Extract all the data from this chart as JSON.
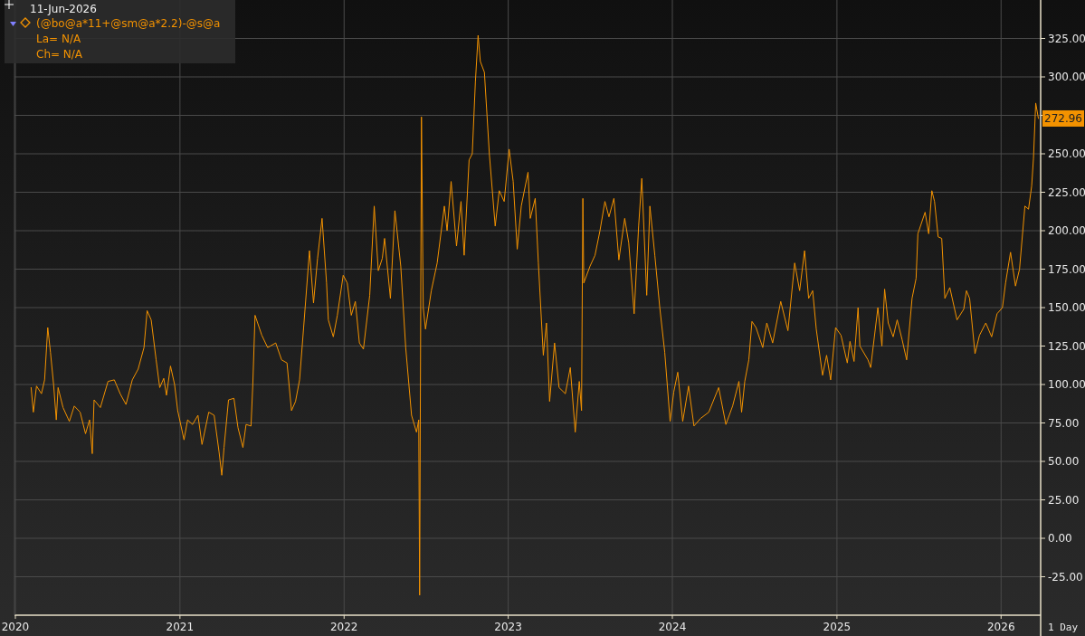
{
  "chart_data": {
    "type": "line",
    "x": [
      "2020-02-05",
      "2020-02-10",
      "2020-02-17",
      "2020-02-28",
      "2020-03-06",
      "2020-03-13",
      "2020-03-19",
      "2020-03-26",
      "2020-04-01",
      "2020-04-05",
      "2020-04-16",
      "2020-04-30",
      "2020-05-11",
      "2020-05-24",
      "2020-06-05",
      "2020-06-14",
      "2020-06-20",
      "2020-06-24",
      "2020-07-08",
      "2020-07-25",
      "2020-08-08",
      "2020-08-21",
      "2020-09-03",
      "2020-09-17",
      "2020-09-30",
      "2020-10-13",
      "2020-10-20",
      "2020-10-29",
      "2020-11-09",
      "2020-11-17",
      "2020-11-26",
      "2020-12-02",
      "2020-12-11",
      "2020-12-20",
      "2020-12-27",
      "2021-01-10",
      "2021-01-18",
      "2021-01-29",
      "2021-02-10",
      "2021-02-19",
      "2021-03-06",
      "2021-03-18",
      "2021-03-29",
      "2021-04-04",
      "2021-04-09",
      "2021-04-19",
      "2021-05-01",
      "2021-05-10",
      "2021-05-21",
      "2021-05-28",
      "2021-06-08",
      "2021-06-12",
      "2021-06-17",
      "2021-07-02",
      "2021-07-15",
      "2021-08-02",
      "2021-08-15",
      "2021-08-27",
      "2021-09-06",
      "2021-09-15",
      "2021-09-24",
      "2021-10-03",
      "2021-10-16",
      "2021-10-25",
      "2021-11-03",
      "2021-11-13",
      "2021-11-23",
      "2021-11-27",
      "2021-12-08",
      "2021-12-17",
      "2021-12-30",
      "2022-01-08",
      "2022-01-17",
      "2022-01-26",
      "2022-02-04",
      "2022-02-13",
      "2022-02-27",
      "2022-03-09",
      "2022-03-18",
      "2022-03-27",
      "2022-04-01",
      "2022-04-14",
      "2022-04-24",
      "2022-05-07",
      "2022-05-18",
      "2022-05-31",
      "2022-06-11",
      "2022-06-16",
      "2022-06-18",
      "2022-06-22",
      "2022-06-26",
      "2022-07-01",
      "2022-07-14",
      "2022-07-27",
      "2022-08-12",
      "2022-08-18",
      "2022-08-27",
      "2022-09-08",
      "2022-09-18",
      "2022-09-25",
      "2022-10-06",
      "2022-10-13",
      "2022-10-20",
      "2022-10-26",
      "2022-10-31",
      "2022-11-09",
      "2022-11-20",
      "2022-12-03",
      "2022-12-12",
      "2022-12-23",
      "2023-01-03",
      "2023-01-12",
      "2023-01-21",
      "2023-01-30",
      "2023-02-14",
      "2023-02-19",
      "2023-03-02",
      "2023-03-09",
      "2023-03-20",
      "2023-03-27",
      "2023-04-03",
      "2023-04-14",
      "2023-04-24",
      "2023-05-08",
      "2023-05-19",
      "2023-05-30",
      "2023-06-08",
      "2023-06-13",
      "2023-06-16",
      "2023-06-18",
      "2023-07-02",
      "2023-07-13",
      "2023-07-24",
      "2023-08-04",
      "2023-08-13",
      "2023-08-24",
      "2023-09-04",
      "2023-09-17",
      "2023-09-26",
      "2023-10-08",
      "2023-10-18",
      "2023-10-25",
      "2023-11-05",
      "2023-11-12",
      "2023-11-23",
      "2023-12-04",
      "2023-12-15",
      "2023-12-27",
      "2024-01-04",
      "2024-01-13",
      "2024-01-24",
      "2024-02-06",
      "2024-02-18",
      "2024-03-04",
      "2024-03-22",
      "2024-04-13",
      "2024-04-29",
      "2024-05-14",
      "2024-05-28",
      "2024-06-03",
      "2024-06-10",
      "2024-06-19",
      "2024-06-26",
      "2024-07-05",
      "2024-07-20",
      "2024-07-29",
      "2024-08-11",
      "2024-08-29",
      "2024-09-14",
      "2024-09-29",
      "2024-10-10",
      "2024-10-21",
      "2024-10-30",
      "2024-11-08",
      "2024-11-16",
      "2024-11-30",
      "2024-12-09",
      "2024-12-18",
      "2024-12-29",
      "2025-01-10",
      "2025-01-24",
      "2025-01-30",
      "2025-02-08",
      "2025-02-17",
      "2025-02-21",
      "2025-03-11",
      "2025-03-17",
      "2025-04-02",
      "2025-04-11",
      "2025-04-17",
      "2025-04-25",
      "2025-05-06",
      "2025-05-15",
      "2025-05-26",
      "2025-06-05",
      "2025-06-17",
      "2025-06-26",
      "2025-06-30",
      "2025-07-16",
      "2025-07-24",
      "2025-07-31",
      "2025-08-06",
      "2025-08-14",
      "2025-08-22",
      "2025-08-29",
      "2025-09-09",
      "2025-09-25",
      "2025-10-10",
      "2025-10-16",
      "2025-10-23",
      "2025-11-04",
      "2025-11-14",
      "2025-11-28",
      "2025-12-11",
      "2025-12-23",
      "2026-01-04",
      "2026-01-11",
      "2026-01-22",
      "2026-02-02",
      "2026-02-11",
      "2026-02-23",
      "2026-03-03",
      "2026-03-10",
      "2026-03-14",
      "2026-03-19",
      "2026-03-25"
    ],
    "series": [
      {
        "name": "(@bo@a*11+@sm@a*2.2)-@s@a",
        "color": "#f39200",
        "values": [
          98,
          82,
          99,
          94,
          103,
          137,
          121,
          100,
          77,
          98,
          85,
          76,
          86,
          82,
          68,
          77,
          55,
          90,
          85,
          102,
          103,
          94,
          87,
          103,
          110,
          124,
          148,
          142,
          116,
          98,
          104,
          93,
          112,
          100,
          83,
          64,
          77,
          74,
          80,
          61,
          82,
          80,
          56,
          41,
          59,
          90,
          91,
          72,
          59,
          74,
          73,
          100,
          145,
          132,
          124,
          127,
          116,
          114,
          83,
          89,
          103,
          137,
          187,
          153,
          182,
          208,
          166,
          142,
          131,
          145,
          171,
          166,
          145,
          154,
          127,
          123,
          158,
          216,
          174,
          182,
          195,
          156,
          213,
          177,
          124,
          80,
          69,
          77,
          -37,
          274,
          150,
          136,
          161,
          179,
          216,
          200,
          232,
          190,
          219,
          184,
          246,
          250,
          297,
          327,
          310,
          303,
          250,
          203,
          226,
          219,
          253,
          232,
          188,
          216,
          238,
          208,
          221,
          179,
          119,
          140,
          89,
          127,
          98,
          94,
          111,
          69,
          102,
          83,
          221,
          166,
          177,
          184,
          200,
          219,
          209,
          221,
          181,
          208,
          192,
          146,
          203,
          234,
          158,
          216,
          184,
          150,
          121,
          76,
          95,
          108,
          76,
          99,
          73,
          78,
          82,
          98,
          74,
          86,
          102,
          82,
          102,
          116,
          141,
          137,
          124,
          140,
          127,
          154,
          135,
          179,
          161,
          187,
          156,
          161,
          136,
          106,
          119,
          103,
          137,
          132,
          114,
          128,
          115,
          150,
          125,
          116,
          111,
          150,
          125,
          162,
          140,
          131,
          142,
          129,
          116,
          156,
          169,
          198,
          212,
          198,
          226,
          219,
          196,
          195,
          156,
          163,
          142,
          149,
          161,
          156,
          120,
          132,
          140,
          131,
          146,
          150,
          166,
          186,
          164,
          175,
          216,
          214,
          229,
          247,
          283,
          272.96
        ]
      }
    ],
    "xlim": [
      "2019-12-30",
      "2026-03-30"
    ],
    "xticks": [
      "2020",
      "2021",
      "2022",
      "2023",
      "2024",
      "2025",
      "2026"
    ],
    "ylim": [
      -50,
      350
    ],
    "yticks": [
      {
        "value": -25,
        "label": "-25.00"
      },
      {
        "value": 0,
        "label": "0.00"
      },
      {
        "value": 25,
        "label": "25.00"
      },
      {
        "value": 50,
        "label": "50.00"
      },
      {
        "value": 75,
        "label": "75.00"
      },
      {
        "value": 100,
        "label": "100.00"
      },
      {
        "value": 125,
        "label": "125.00"
      },
      {
        "value": 150,
        "label": "150.00"
      },
      {
        "value": 175,
        "label": "175.00"
      },
      {
        "value": 200,
        "label": "200.00"
      },
      {
        "value": 225,
        "label": "225.00"
      },
      {
        "value": 250,
        "label": "250.00"
      },
      {
        "value": 275,
        "label": null
      },
      {
        "value": 300,
        "label": "300.00"
      },
      {
        "value": 325,
        "label": "325.00"
      }
    ],
    "grid": true,
    "legend": "top left",
    "annotations": [
      "11-Jun-2026",
      "La= N/A",
      "Ch= N/A",
      "1 Day",
      "272.96"
    ]
  }
}
